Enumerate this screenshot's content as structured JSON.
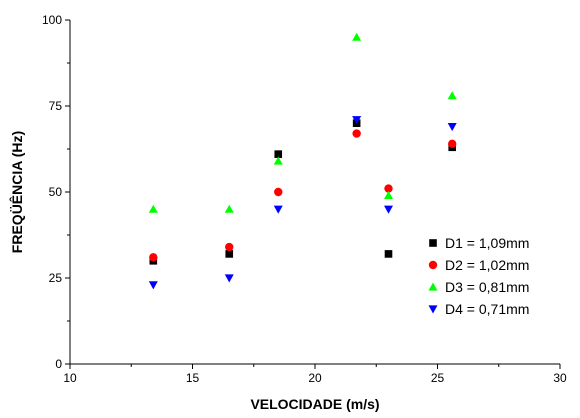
{
  "chart_data": {
    "type": "scatter",
    "title": "",
    "xlabel": "VELOCIDADE (m/s)",
    "ylabel": "FREQÜÊNCIA (Hz)",
    "xlim": [
      10,
      30
    ],
    "ylim": [
      0,
      100
    ],
    "xticks": [
      "10",
      "15",
      "20",
      "25",
      "30"
    ],
    "yticks": [
      "0",
      "25",
      "50",
      "75",
      "100"
    ],
    "grid": false,
    "legend_position": "bottom-right",
    "series": [
      {
        "name": "D1 = 1,09mm",
        "marker": "square",
        "color": "#000000",
        "x": [
          13.4,
          16.5,
          18.5,
          21.7,
          23.0,
          25.6
        ],
        "y": [
          30,
          32,
          61,
          70,
          32,
          63
        ]
      },
      {
        "name": "D2 = 1,02mm",
        "marker": "circle",
        "color": "#ff0000",
        "x": [
          13.4,
          16.5,
          18.5,
          21.7,
          23.0,
          25.6
        ],
        "y": [
          31,
          34,
          50,
          67,
          51,
          64
        ]
      },
      {
        "name": "D3 = 0,81mm",
        "marker": "triangle-up",
        "color": "#00ff00",
        "x": [
          13.4,
          16.5,
          18.5,
          21.7,
          23.0,
          25.6
        ],
        "y": [
          45,
          45,
          59,
          95,
          49,
          78
        ]
      },
      {
        "name": "D4 = 0,71mm",
        "marker": "triangle-down",
        "color": "#0000ff",
        "x": [
          13.4,
          16.5,
          18.5,
          21.7,
          23.0,
          25.6
        ],
        "y": [
          23,
          25,
          45,
          71,
          45,
          69
        ]
      }
    ]
  }
}
